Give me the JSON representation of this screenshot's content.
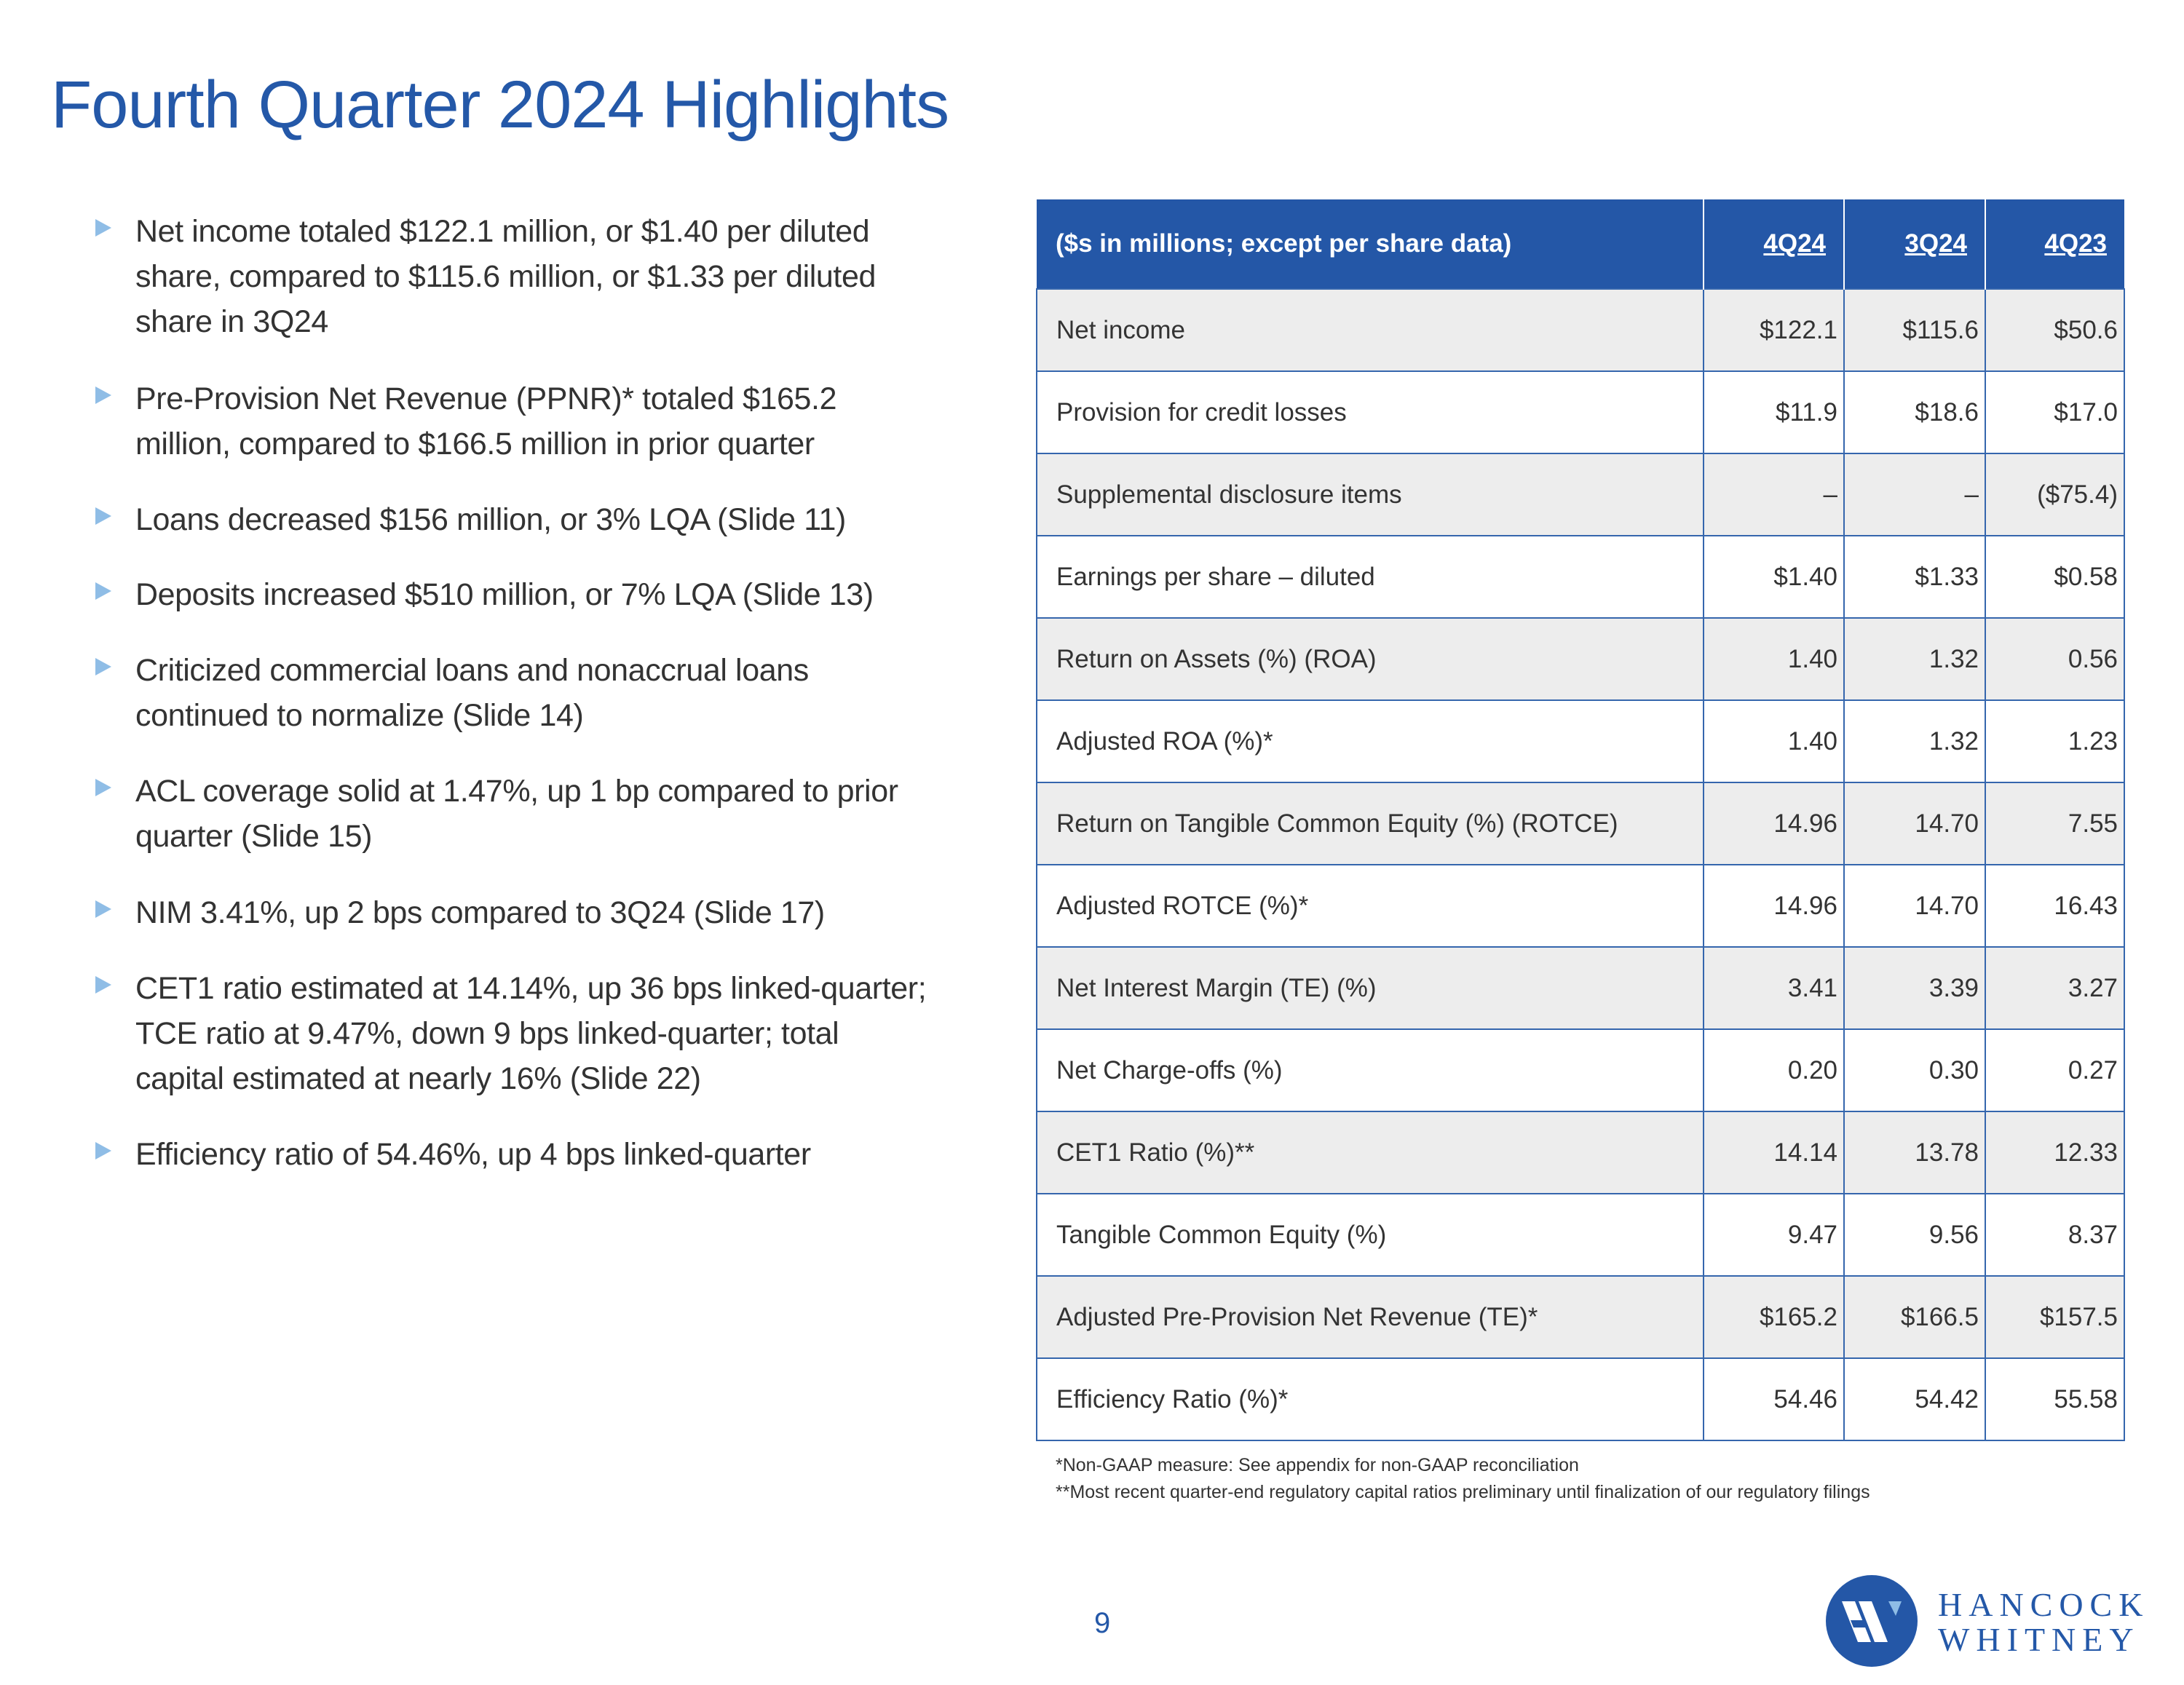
{
  "title": "Fourth Quarter 2024 Highlights",
  "bullets": [
    {
      "lines": [
        "Net income totaled $122.1 million, or $1.40 per diluted",
        "share, compared to $115.6 million, or $1.33 per diluted",
        "share in 3Q24"
      ]
    },
    {
      "lines": [
        "Pre-Provision Net Revenue (PPNR)* totaled $165.2",
        "million, compared to $166.5 million in prior quarter"
      ]
    },
    {
      "lines": [
        "Loans decreased $156 million, or 3% LQA (Slide 11)"
      ]
    },
    {
      "lines": [
        "Deposits increased $510 million, or 7% LQA (Slide 13)"
      ]
    },
    {
      "lines": [
        "Criticized commercial loans and nonaccrual loans",
        "continued to normalize (Slide 14)"
      ]
    },
    {
      "lines": [
        "ACL coverage solid at 1.47%, up 1 bp compared to prior",
        "quarter (Slide 15)"
      ]
    },
    {
      "lines": [
        "NIM 3.41%, up 2 bps compared to 3Q24 (Slide 17)"
      ]
    },
    {
      "lines": [
        "CET1 ratio estimated at 14.14%, up 36 bps linked-quarter;",
        "TCE ratio at 9.47%, down 9 bps linked-quarter; total",
        "capital estimated at nearly 16% (Slide 22)"
      ]
    },
    {
      "lines": [
        "Efficiency ratio of 54.46%, up 4 bps linked-quarter"
      ]
    }
  ],
  "table": {
    "header": [
      "($s in millions; except per share data)",
      "4Q24",
      "3Q24",
      "4Q23"
    ],
    "rows": [
      [
        "Net income",
        "$122.1",
        "$115.6",
        "$50.6"
      ],
      [
        "Provision for credit losses",
        "$11.9",
        "$18.6",
        "$17.0"
      ],
      [
        "Supplemental disclosure items",
        "–",
        "–",
        "($75.4)"
      ],
      [
        "Earnings per share – diluted",
        "$1.40",
        "$1.33",
        "$0.58"
      ],
      [
        "Return on Assets (%) (ROA)",
        "1.40",
        "1.32",
        "0.56"
      ],
      [
        "Adjusted ROA (%)*",
        "1.40",
        "1.32",
        "1.23"
      ],
      [
        "Return on Tangible Common Equity (%) (ROTCE)",
        "14.96",
        "14.70",
        "7.55"
      ],
      [
        "Adjusted ROTCE (%)*",
        "14.96",
        "14.70",
        "16.43"
      ],
      [
        "Net Interest Margin (TE) (%)",
        "3.41",
        "3.39",
        "3.27"
      ],
      [
        "Net Charge-offs (%)",
        "0.20",
        "0.30",
        "0.27"
      ],
      [
        "CET1 Ratio (%)**",
        "14.14",
        "13.78",
        "12.33"
      ],
      [
        "Tangible Common Equity (%)",
        "9.47",
        "9.56",
        "8.37"
      ],
      [
        "Adjusted Pre-Provision Net Revenue (TE)*",
        "$165.2",
        "$166.5",
        "$157.5"
      ],
      [
        "Efficiency Ratio (%)*",
        "54.46",
        "54.42",
        "55.58"
      ]
    ]
  },
  "footnotes": [
    "*Non-GAAP measure: See appendix for non-GAAP reconciliation",
    "**Most recent quarter-end regulatory capital ratios preliminary until finalization of our regulatory filings"
  ],
  "page_number": "9",
  "logo": {
    "line1": "HANCOCK",
    "line2": "WHITNEY"
  },
  "colors": {
    "brand_blue": "#2457a7",
    "bullet_arrow": "#8fbde6",
    "row_gray": "#ededed"
  }
}
